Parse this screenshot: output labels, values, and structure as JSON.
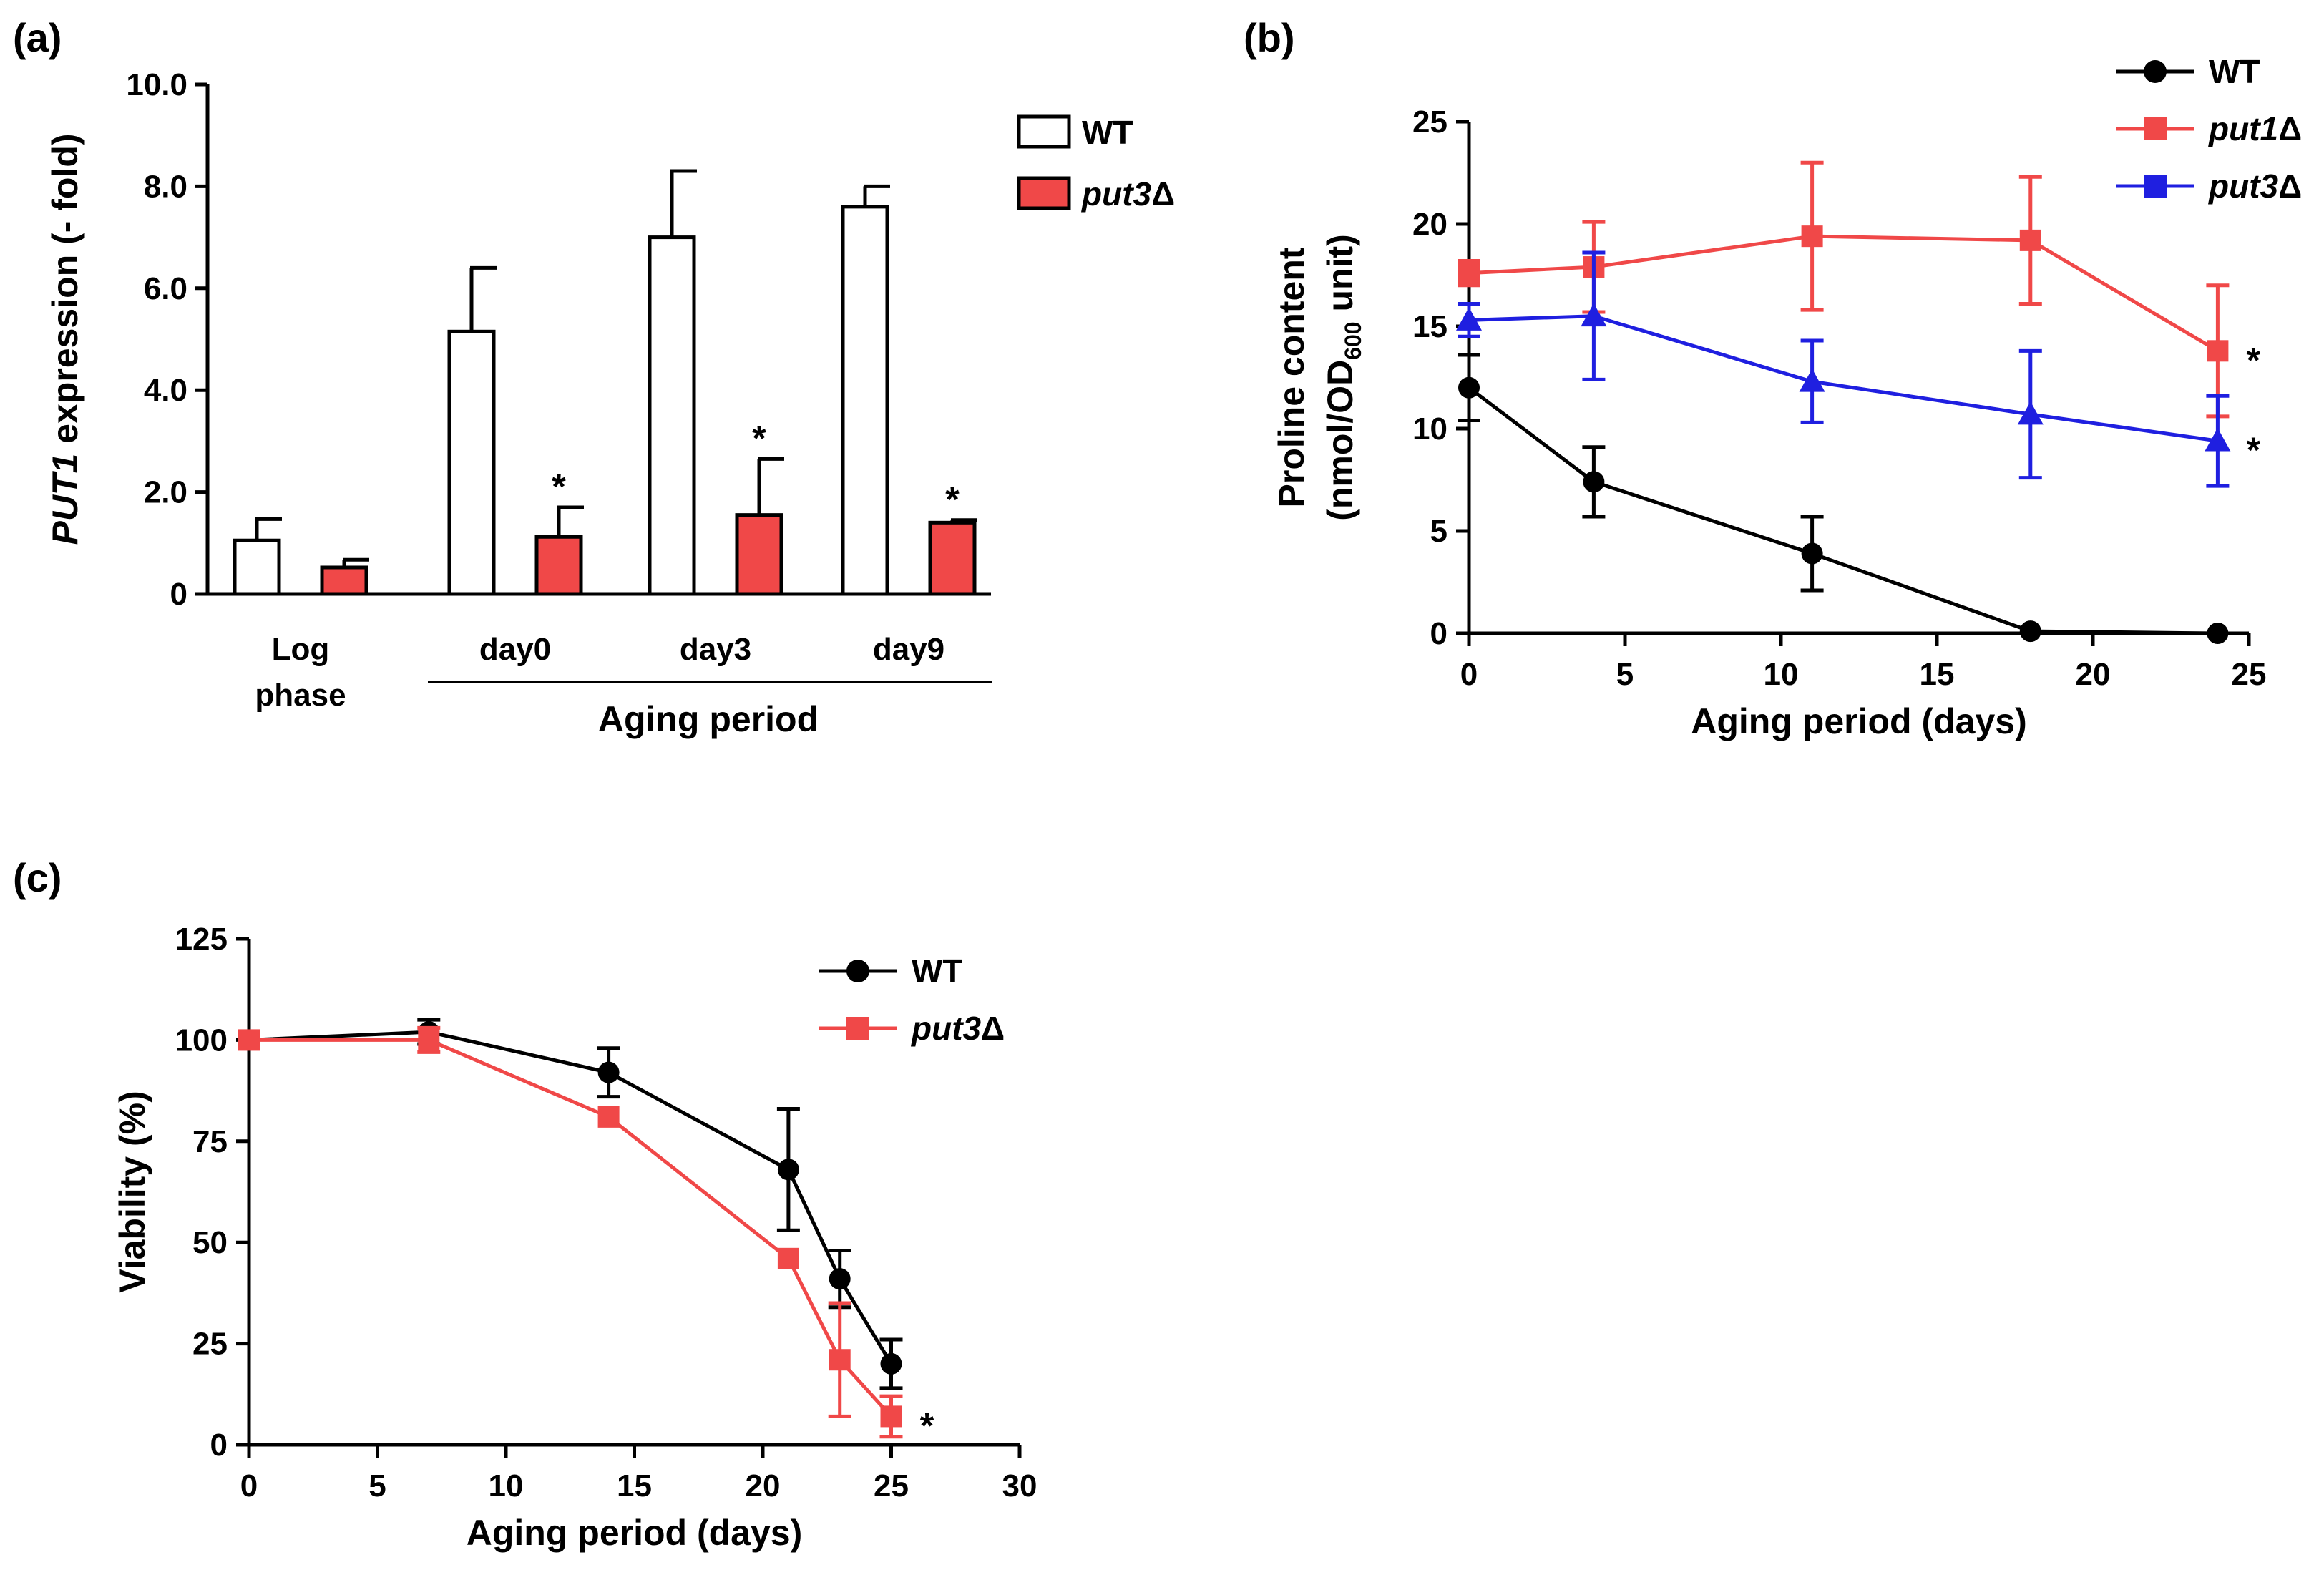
{
  "chart_data": [
    {
      "panel": "(a)",
      "type": "bar",
      "title": "",
      "ylabel_italic": "PUT1",
      "ylabel_rest": " expression (- fold)",
      "ylim": [
        0,
        10
      ],
      "yticks": [
        "0",
        "2.0",
        "4.0",
        "6.0",
        "8.0",
        "10.0"
      ],
      "ytick_values": [
        0,
        2,
        4,
        6,
        8,
        10
      ],
      "categories": [
        "Log phase",
        "day0",
        "day3",
        "day9"
      ],
      "category_lines": [
        [
          "Log",
          "phase"
        ],
        [
          "day0"
        ],
        [
          "day3"
        ],
        [
          "day9"
        ]
      ],
      "group_label": "Aging period",
      "series": [
        {
          "name": "WT",
          "name_italic": "",
          "name_suffix": "WT",
          "color": "#ffffff",
          "values": [
            1.05,
            5.15,
            7.0,
            7.6
          ],
          "errors": [
            0.42,
            1.25,
            1.3,
            0.4
          ],
          "sig": [
            "",
            "",
            "",
            ""
          ]
        },
        {
          "name": "put3Δ",
          "name_italic": "put3",
          "name_suffix": "Δ",
          "color": "#f04848",
          "values": [
            0.52,
            1.12,
            1.55,
            1.4
          ],
          "errors": [
            0.15,
            0.58,
            1.1,
            0.05
          ],
          "sig": [
            "",
            "*",
            "*",
            "*"
          ]
        }
      ]
    },
    {
      "panel": "(b)",
      "type": "line",
      "ylabel_line1": "Proline content",
      "ylabel_line2_pre": "(nmol/OD",
      "ylabel_line2_sub": "600",
      "ylabel_line2_post": " unit)",
      "xlabel": "Aging period (days)",
      "xlim": [
        0,
        25
      ],
      "ylim": [
        0,
        25
      ],
      "xticks": [
        0,
        5,
        10,
        15,
        20,
        25
      ],
      "yticks": [
        0,
        5,
        10,
        15,
        20,
        25
      ],
      "series": [
        {
          "name": "WT",
          "name_italic": "",
          "name_suffix": "WT",
          "color": "#000000",
          "marker": "circle",
          "x": [
            0,
            4,
            11,
            18,
            24
          ],
          "y": [
            12.0,
            7.4,
            3.9,
            0.1,
            0.0
          ],
          "err": [
            1.6,
            1.7,
            1.8,
            0,
            0
          ],
          "sig": ""
        },
        {
          "name": "put1Δ",
          "name_italic": "put1",
          "name_suffix": "Δ",
          "color": "#f04848",
          "marker": "square",
          "x": [
            0,
            4,
            11,
            18,
            24
          ],
          "y": [
            17.6,
            17.9,
            19.4,
            19.2,
            13.8
          ],
          "err": [
            0.6,
            2.2,
            3.6,
            3.1,
            3.2
          ],
          "sig": "*"
        },
        {
          "name": "put3Δ",
          "name_italic": "put3",
          "name_suffix": "Δ",
          "color": "#1f1fe0",
          "marker": "triangle",
          "legend_marker": "square",
          "x": [
            0,
            4,
            11,
            18,
            24
          ],
          "y": [
            15.3,
            15.5,
            12.3,
            10.7,
            9.4
          ],
          "err": [
            0.8,
            3.1,
            2.0,
            3.1,
            2.2
          ],
          "sig": "*"
        }
      ]
    },
    {
      "panel": "(c)",
      "type": "line",
      "ylabel": "Viability (%)",
      "xlabel": "Aging period (days)",
      "xlim": [
        0,
        30
      ],
      "ylim": [
        0,
        125
      ],
      "xticks": [
        0,
        5,
        10,
        15,
        20,
        25,
        30
      ],
      "yticks": [
        0,
        25,
        50,
        75,
        100,
        125
      ],
      "series": [
        {
          "name": "WT",
          "name_italic": "",
          "name_suffix": "WT",
          "color": "#000000",
          "marker": "circle",
          "x": [
            0,
            7,
            14,
            21,
            23,
            25
          ],
          "y": [
            100,
            102,
            92,
            68,
            41,
            20
          ],
          "err": [
            0,
            3,
            6,
            15,
            7,
            6
          ],
          "sig": ""
        },
        {
          "name": "put3Δ",
          "name_italic": "put3",
          "name_suffix": "Δ",
          "color": "#f04848",
          "marker": "square",
          "x": [
            0,
            7,
            14,
            21,
            23,
            25
          ],
          "y": [
            100,
            100,
            81,
            46,
            21,
            7
          ],
          "err": [
            0,
            3,
            0,
            0,
            14,
            5
          ],
          "sig": "*"
        }
      ]
    }
  ]
}
